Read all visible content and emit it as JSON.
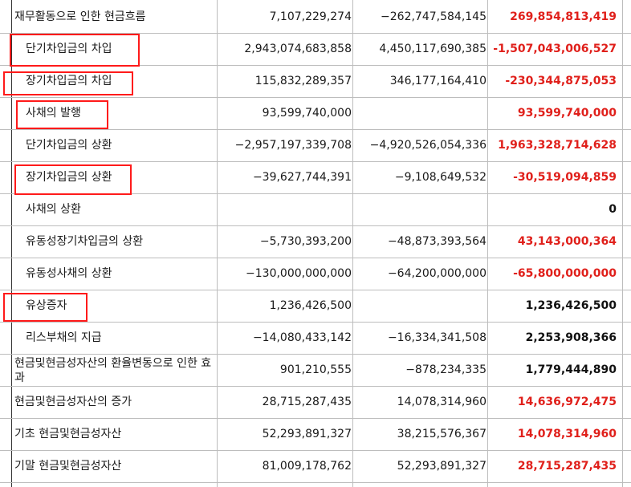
{
  "rows": [
    {
      "label": "재무활동으로 인한 현금흐름",
      "c1": "7,107,229,274",
      "c2": "−262,747,584,145",
      "c3": "269,854,813,419",
      "c3_color": "red"
    },
    {
      "label": "단기차입금의 차입",
      "c1": "2,943,074,683,858",
      "c2": "4,450,117,690,385",
      "c3": "-1,507,043,006,527",
      "c3_color": "red"
    },
    {
      "label": "장기차입금의 차입",
      "c1": "115,832,289,357",
      "c2": "346,177,164,410",
      "c3": "-230,344,875,053",
      "c3_color": "red"
    },
    {
      "label": "사채의 발행",
      "c1": "93,599,740,000",
      "c2": "",
      "c3": "93,599,740,000",
      "c3_color": "red"
    },
    {
      "label": "단기차입금의 상환",
      "c1": "−2,957,197,339,708",
      "c2": "−4,920,526,054,336",
      "c3": "1,963,328,714,628",
      "c3_color": "red"
    },
    {
      "label": "장기차입금의 상환",
      "c1": "−39,627,744,391",
      "c2": "−9,108,649,532",
      "c3": "-30,519,094,859",
      "c3_color": "red"
    },
    {
      "label": "사채의 상환",
      "c1": "",
      "c2": "",
      "c3": "0",
      "c3_color": "black"
    },
    {
      "label": "유동성장기차입금의 상환",
      "c1": "−5,730,393,200",
      "c2": "−48,873,393,564",
      "c3": "43,143,000,364",
      "c3_color": "red"
    },
    {
      "label": "유동성사채의 상환",
      "c1": "−130,000,000,000",
      "c2": "−64,200,000,000",
      "c3": "-65,800,000,000",
      "c3_color": "red"
    },
    {
      "label": "유상증자",
      "c1": "1,236,426,500",
      "c2": "",
      "c3": "1,236,426,500",
      "c3_color": "black"
    },
    {
      "label": "리스부채의 지급",
      "c1": "−14,080,433,142",
      "c2": "−16,334,341,508",
      "c3": "2,253,908,366",
      "c3_color": "black"
    },
    {
      "label": "현금및현금성자산의 환율변동으로 인한 효과",
      "c1": "901,210,555",
      "c2": "−878,234,335",
      "c3": "1,779,444,890",
      "c3_color": "black"
    },
    {
      "label": "현금및현금성자산의 증가",
      "c1": "28,715,287,435",
      "c2": "14,078,314,960",
      "c3": "14,636,972,475",
      "c3_color": "red"
    },
    {
      "label": "기초 현금및현금성자산",
      "c1": "52,293,891,327",
      "c2": "38,215,576,367",
      "c3": "14,078,314,960",
      "c3_color": "red"
    },
    {
      "label": "기말 현금및현금성자산",
      "c1": "81,009,178,762",
      "c2": "52,293,891,327",
      "c3": "28,715,287,435",
      "c3_color": "red"
    }
  ],
  "highlighted_rows": [
    "단기차입금의 차입",
    "장기차입금의 차입",
    "사채의 발행",
    "장기차입금의 상환",
    "유상증자"
  ],
  "colors": {
    "negative_diff": "#e0201b",
    "highlight_border": "#ff1a1a",
    "grid": "#bdbdbd"
  }
}
